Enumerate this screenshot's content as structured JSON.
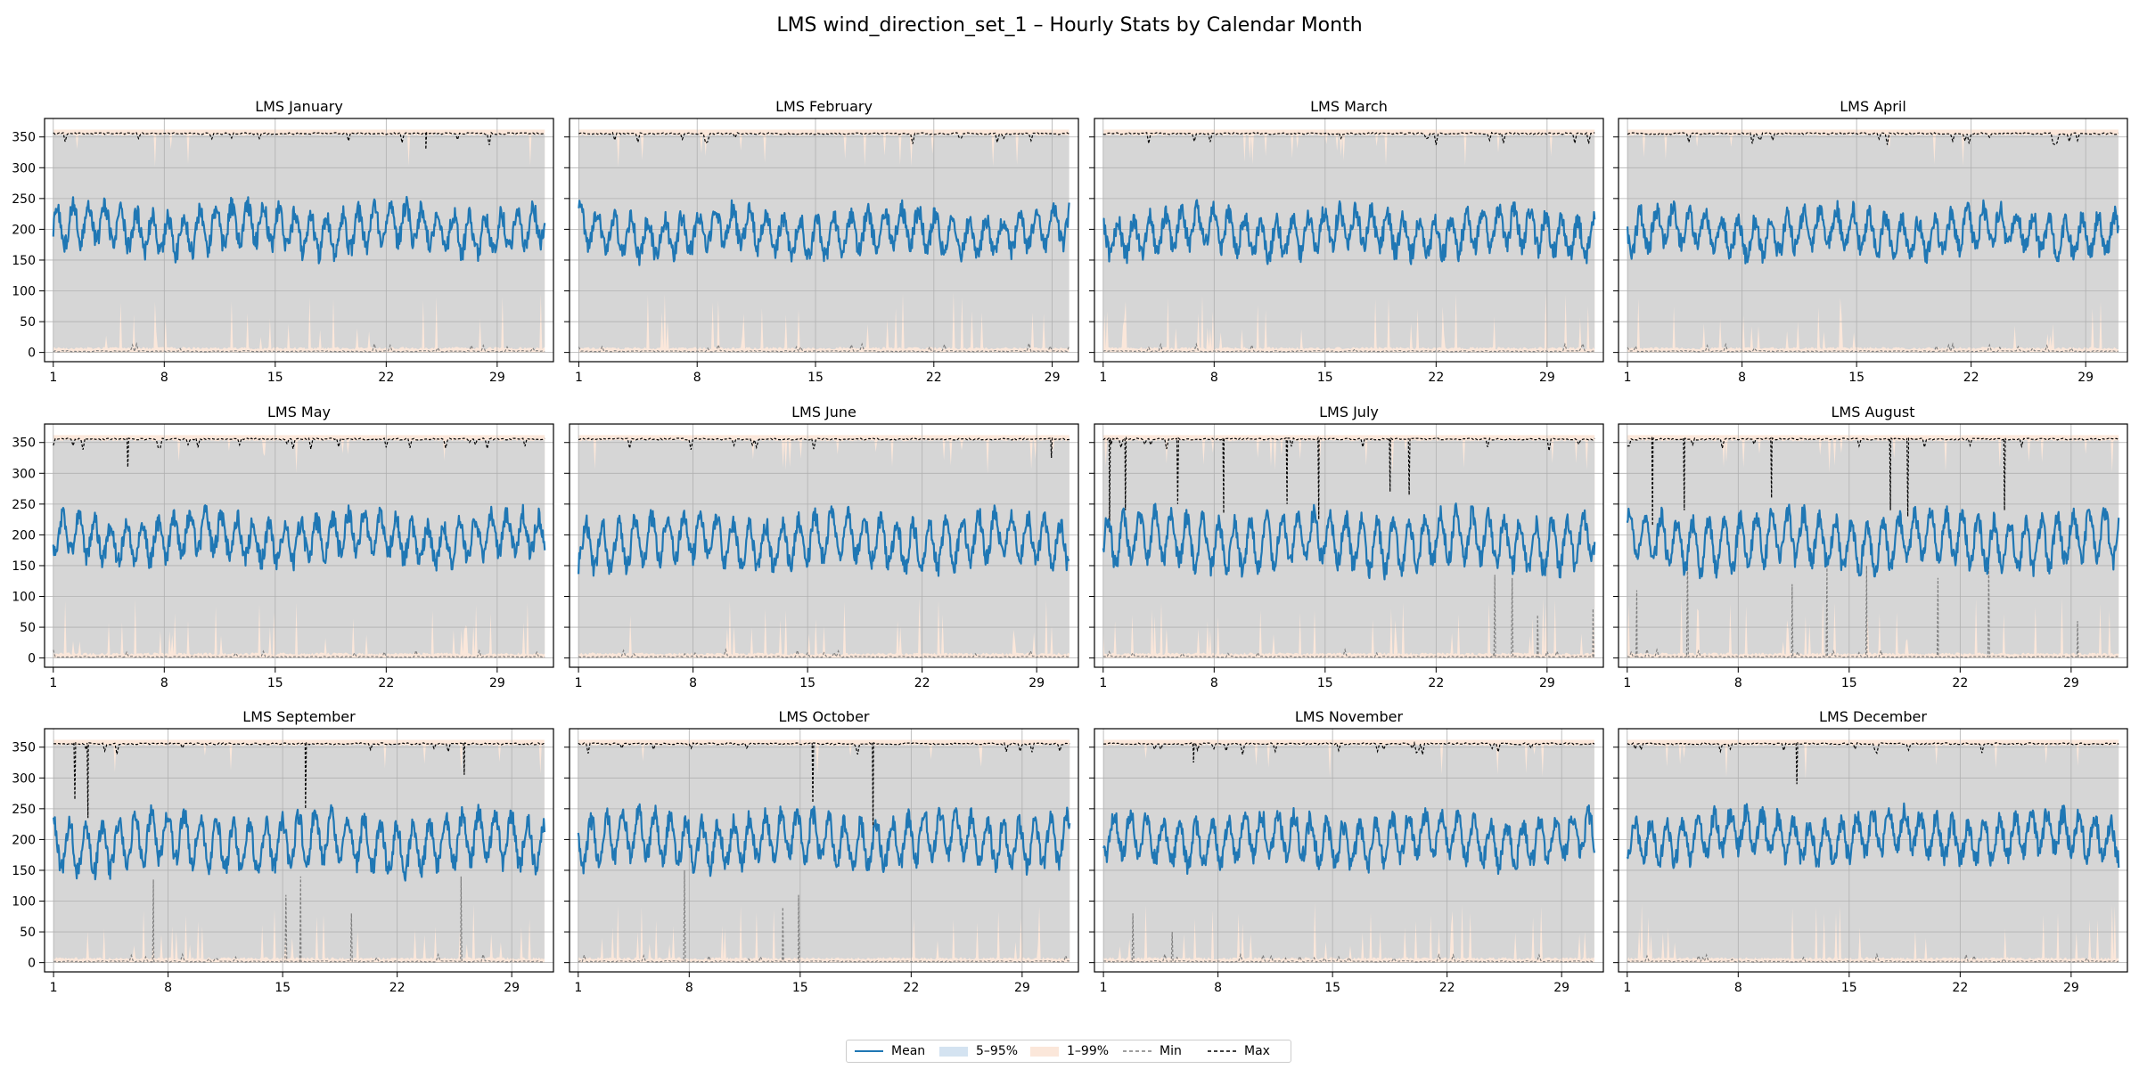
{
  "figure": {
    "title": "LMS wind_direction_set_1 – Hourly Stats by Calendar Month"
  },
  "colors": {
    "mean": "#1f77b4",
    "band_5_95": "#d6d6d6",
    "band_1_99": "#fbe7da",
    "min": "#7f7f7f",
    "max": "#000000",
    "grid": "#b0b0b0"
  },
  "chart_data": [
    {
      "type": "line",
      "title": "LMS January",
      "days": 31,
      "ylim": [
        -15,
        380
      ],
      "yticks": [
        0,
        50,
        100,
        150,
        200,
        250,
        300,
        350
      ],
      "xticks": [
        1,
        8,
        15,
        22,
        29
      ],
      "mean_level": 200,
      "mean_amp": 30,
      "mean_min": 120,
      "mean_max": 275,
      "band_5_95": [
        5,
        355
      ],
      "min_spikes": [],
      "max_dips": [
        {
          "day": 24.5,
          "value": 330
        }
      ],
      "grid": true
    },
    {
      "type": "line",
      "title": "LMS February",
      "days": 29,
      "ylim": [
        -15,
        380
      ],
      "yticks": [
        0,
        50,
        100,
        150,
        200,
        250,
        300,
        350
      ],
      "xticks": [
        1,
        8,
        15,
        22,
        29
      ],
      "mean_level": 195,
      "mean_amp": 28,
      "mean_min": 120,
      "mean_max": 265,
      "band_5_95": [
        5,
        355
      ],
      "min_spikes": [],
      "max_dips": [],
      "grid": true
    },
    {
      "type": "line",
      "title": "LMS March",
      "days": 31,
      "ylim": [
        -15,
        380
      ],
      "yticks": [
        0,
        50,
        100,
        150,
        200,
        250,
        300,
        350
      ],
      "xticks": [
        1,
        8,
        15,
        22,
        29
      ],
      "mean_level": 195,
      "mean_amp": 28,
      "mean_min": 95,
      "mean_max": 270,
      "band_5_95": [
        5,
        355
      ],
      "min_spikes": [],
      "max_dips": [],
      "grid": true
    },
    {
      "type": "line",
      "title": "LMS April",
      "days": 30,
      "ylim": [
        -15,
        380
      ],
      "yticks": [
        0,
        50,
        100,
        150,
        200,
        250,
        300,
        350
      ],
      "xticks": [
        1,
        8,
        15,
        22,
        29
      ],
      "mean_level": 195,
      "mean_amp": 28,
      "mean_min": 125,
      "mean_max": 280,
      "band_5_95": [
        5,
        355
      ],
      "min_spikes": [],
      "max_dips": [],
      "grid": true
    },
    {
      "type": "line",
      "title": "LMS May",
      "days": 31,
      "ylim": [
        -15,
        380
      ],
      "yticks": [
        0,
        50,
        100,
        150,
        200,
        250,
        300,
        350
      ],
      "xticks": [
        1,
        8,
        15,
        22,
        29
      ],
      "mean_level": 195,
      "mean_amp": 30,
      "mean_min": 115,
      "mean_max": 270,
      "band_5_95": [
        5,
        355
      ],
      "min_spikes": [],
      "max_dips": [
        {
          "day": 5.7,
          "value": 310
        }
      ],
      "grid": true
    },
    {
      "type": "line",
      "title": "LMS June",
      "days": 30,
      "ylim": [
        -15,
        380
      ],
      "yticks": [
        0,
        50,
        100,
        150,
        200,
        250,
        300,
        350
      ],
      "xticks": [
        1,
        8,
        15,
        22,
        29
      ],
      "mean_level": 190,
      "mean_amp": 35,
      "mean_min": 90,
      "mean_max": 290,
      "band_5_95": [
        5,
        355
      ],
      "min_spikes": [],
      "max_dips": [
        {
          "day": 29.9,
          "value": 325
        }
      ],
      "grid": true
    },
    {
      "type": "line",
      "title": "LMS July",
      "days": 31,
      "ylim": [
        -15,
        380
      ],
      "yticks": [
        0,
        50,
        100,
        150,
        200,
        250,
        300,
        350
      ],
      "xticks": [
        1,
        8,
        15,
        22,
        29
      ],
      "mean_level": 190,
      "mean_amp": 38,
      "mean_min": 110,
      "mean_max": 290,
      "band_5_95": [
        5,
        355
      ],
      "min_spikes": [
        {
          "day": 25.7,
          "value": 135
        },
        {
          "day": 26.8,
          "value": 130
        },
        {
          "day": 28.4,
          "value": 70
        },
        {
          "day": 31.9,
          "value": 80
        }
      ],
      "max_dips": [
        {
          "day": 1.4,
          "value": 205
        },
        {
          "day": 2.4,
          "value": 240
        },
        {
          "day": 5.7,
          "value": 250
        },
        {
          "day": 8.6,
          "value": 235
        },
        {
          "day": 12.6,
          "value": 250
        },
        {
          "day": 14.6,
          "value": 225
        },
        {
          "day": 19.1,
          "value": 270
        },
        {
          "day": 20.3,
          "value": 265
        }
      ],
      "grid": true
    },
    {
      "type": "line",
      "title": "LMS August",
      "days": 31,
      "ylim": [
        -15,
        380
      ],
      "yticks": [
        0,
        50,
        100,
        150,
        200,
        250,
        300,
        350
      ],
      "xticks": [
        1,
        8,
        15,
        22,
        29
      ],
      "mean_level": 190,
      "mean_amp": 38,
      "mean_min": 100,
      "mean_max": 280,
      "band_5_95": [
        5,
        355
      ],
      "min_spikes": [
        {
          "day": 1.6,
          "value": 110
        },
        {
          "day": 4.8,
          "value": 170
        },
        {
          "day": 11.4,
          "value": 120
        },
        {
          "day": 13.6,
          "value": 150
        },
        {
          "day": 16.1,
          "value": 150
        },
        {
          "day": 20.6,
          "value": 130
        },
        {
          "day": 23.8,
          "value": 150
        },
        {
          "day": 29.4,
          "value": 60
        }
      ],
      "max_dips": [
        {
          "day": 2.6,
          "value": 215
        },
        {
          "day": 4.6,
          "value": 240
        },
        {
          "day": 10.1,
          "value": 260
        },
        {
          "day": 17.6,
          "value": 240
        },
        {
          "day": 18.7,
          "value": 230
        },
        {
          "day": 24.8,
          "value": 240
        }
      ],
      "grid": true
    },
    {
      "type": "line",
      "title": "LMS September",
      "days": 30,
      "ylim": [
        -15,
        380
      ],
      "yticks": [
        0,
        50,
        100,
        150,
        200,
        250,
        300,
        350
      ],
      "xticks": [
        1,
        8,
        15,
        22,
        29
      ],
      "mean_level": 195,
      "mean_amp": 38,
      "mean_min": 100,
      "mean_max": 290,
      "band_5_95": [
        5,
        355
      ],
      "min_spikes": [
        {
          "day": 7.1,
          "value": 135
        },
        {
          "day": 15.2,
          "value": 110
        },
        {
          "day": 16.1,
          "value": 140
        },
        {
          "day": 19.2,
          "value": 80
        },
        {
          "day": 25.9,
          "value": 140
        }
      ],
      "max_dips": [
        {
          "day": 2.3,
          "value": 265
        },
        {
          "day": 3.1,
          "value": 235
        },
        {
          "day": 16.4,
          "value": 250
        },
        {
          "day": 26.1,
          "value": 305
        }
      ],
      "grid": true
    },
    {
      "type": "line",
      "title": "LMS October",
      "days": 31,
      "ylim": [
        -15,
        380
      ],
      "yticks": [
        0,
        50,
        100,
        150,
        200,
        250,
        300,
        350
      ],
      "xticks": [
        1,
        8,
        15,
        22,
        29
      ],
      "mean_level": 200,
      "mean_amp": 35,
      "mean_min": 110,
      "mean_max": 285,
      "band_5_95": [
        5,
        355
      ],
      "min_spikes": [
        {
          "day": 7.7,
          "value": 150
        },
        {
          "day": 13.9,
          "value": 90
        },
        {
          "day": 14.9,
          "value": 110
        }
      ],
      "max_dips": [
        {
          "day": 15.8,
          "value": 260
        },
        {
          "day": 19.6,
          "value": 215
        }
      ],
      "grid": true
    },
    {
      "type": "line",
      "title": "LMS November",
      "days": 30,
      "ylim": [
        -15,
        380
      ],
      "yticks": [
        0,
        50,
        100,
        150,
        200,
        250,
        300,
        350
      ],
      "xticks": [
        1,
        8,
        15,
        22,
        29
      ],
      "mean_level": 200,
      "mean_amp": 32,
      "mean_min": 125,
      "mean_max": 300,
      "band_5_95": [
        5,
        355
      ],
      "min_spikes": [
        {
          "day": 2.8,
          "value": 80
        },
        {
          "day": 5.2,
          "value": 50
        }
      ],
      "max_dips": [
        {
          "day": 6.5,
          "value": 325
        }
      ],
      "grid": true
    },
    {
      "type": "line",
      "title": "LMS December",
      "days": 31,
      "ylim": [
        -15,
        380
      ],
      "yticks": [
        0,
        50,
        100,
        150,
        200,
        250,
        300,
        350
      ],
      "xticks": [
        1,
        8,
        15,
        22,
        29
      ],
      "mean_level": 205,
      "mean_amp": 30,
      "mean_min": 140,
      "mean_max": 280,
      "band_5_95": [
        5,
        355
      ],
      "min_spikes": [],
      "max_dips": [
        {
          "day": 11.7,
          "value": 290
        }
      ],
      "grid": true
    }
  ],
  "legend": {
    "placement": "bottom-center",
    "items": [
      {
        "key": "mean",
        "label": "Mean"
      },
      {
        "key": "band_5_95",
        "label": "5–95%"
      },
      {
        "key": "band_1_99",
        "label": "1–99%"
      },
      {
        "key": "min",
        "label": "Min"
      },
      {
        "key": "max",
        "label": "Max"
      }
    ]
  }
}
